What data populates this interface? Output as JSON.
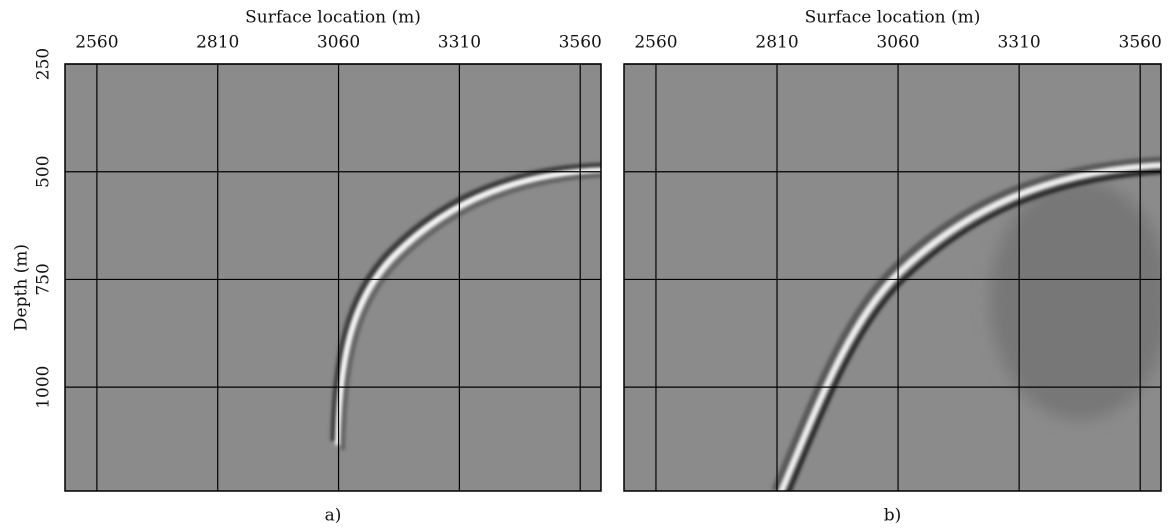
{
  "chart_data": [
    {
      "type": "image",
      "caption": "a)",
      "xlabel": "Surface location (m)",
      "ylabel": "Depth (m)",
      "xlim": [
        2494,
        3603
      ],
      "xticks": [
        2560,
        2810,
        3060,
        3310,
        3560
      ],
      "ylim": [
        250,
        1241
      ],
      "yticks": [
        250,
        500,
        750,
        1000
      ],
      "ytick_labels": true,
      "grid": true
    },
    {
      "type": "image",
      "caption": "b)",
      "xlabel": "Surface location (m)",
      "xlim": [
        2494,
        3603
      ],
      "xticks": [
        2560,
        2810,
        3060,
        3310,
        3560
      ],
      "ylim": [
        250,
        1241
      ],
      "yticks": [
        250,
        500,
        750,
        1000
      ],
      "ytick_labels": false,
      "grid": true
    }
  ]
}
